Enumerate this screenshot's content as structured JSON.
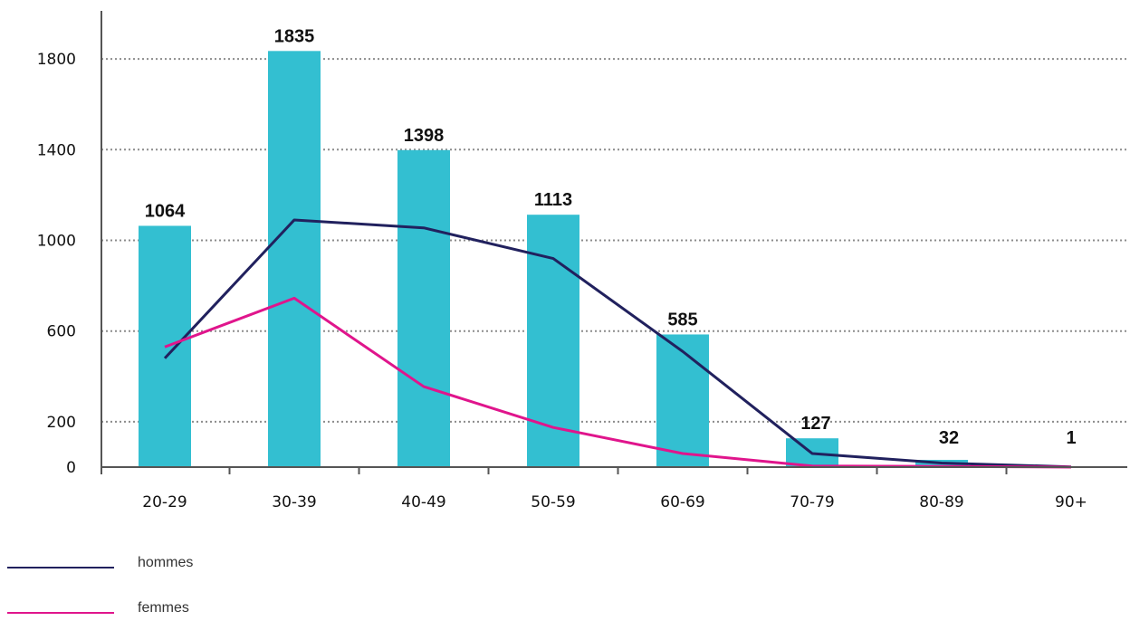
{
  "chart_data": {
    "type": "bar",
    "categories": [
      "20-29",
      "30-39",
      "40-49",
      "50-59",
      "60-69",
      "70-79",
      "80-89",
      "90+"
    ],
    "values": [
      1064,
      1835,
      1398,
      1113,
      585,
      127,
      32,
      1
    ],
    "line_series": [
      {
        "name": "hommes",
        "values": [
          480,
          1090,
          1055,
          920,
          510,
          60,
          18,
          1
        ]
      },
      {
        "name": "femmes",
        "values": [
          530,
          745,
          355,
          175,
          60,
          5,
          3,
          0
        ]
      }
    ],
    "ylim": [
      0,
      2000
    ],
    "yticks": [
      0,
      200,
      600,
      1000,
      1400,
      1800
    ],
    "grid": true,
    "legend_position": "bottom-left",
    "colors": {
      "bars": "#33BFD1",
      "hommes": "#21215E",
      "femmes": "#E0158C",
      "grid": "#8C8C8C",
      "axis": "#555555"
    }
  }
}
